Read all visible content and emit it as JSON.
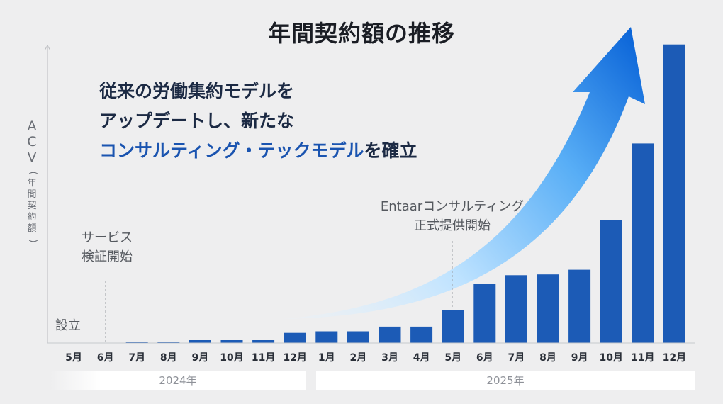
{
  "title": "年間契約額の推移",
  "headline": {
    "line1": "従来の労働集約モデルを",
    "line2": "アップデートし、新たな",
    "line3_highlight": "コンサルティング・テックモデル",
    "line3_rest": "を確立"
  },
  "y_axis_label": {
    "abbr": [
      "A",
      "C",
      "V"
    ],
    "paren_open": "(",
    "paren_chars": [
      "年",
      "間",
      "契",
      "約",
      "額"
    ],
    "paren_close": ")"
  },
  "annotations": {
    "founding": "設立",
    "service_line1": "サービス",
    "service_line2": "検証開始",
    "entaar_line1": "Entaarコンサルティング",
    "entaar_line2": "正式提供開始"
  },
  "years": [
    "2024年",
    "2025年"
  ],
  "colors": {
    "bar": "#1c5bb6",
    "arrow_dark": "#0a64d8",
    "arrow_light": "#bfe3ff",
    "band": "#ffffff"
  },
  "chart_data": {
    "type": "bar",
    "title": "年間契約額の推移",
    "ylabel": "ACV(年間契約額)",
    "categories": [
      "5月",
      "6月",
      "7月",
      "8月",
      "9月",
      "10月",
      "11月",
      "12月",
      "1月",
      "2月",
      "3月",
      "4月",
      "5月",
      "6月",
      "7月",
      "8月",
      "9月",
      "10月",
      "11月",
      "12月"
    ],
    "values": [
      0,
      0,
      0.1,
      0.1,
      0.4,
      0.4,
      0.4,
      1.3,
      1.5,
      1.5,
      2.1,
      2.1,
      4.2,
      7.6,
      8.7,
      8.8,
      9.4,
      15.8,
      25.6,
      38.3
    ],
    "ylim": [
      0,
      40
    ],
    "year_groups": [
      {
        "label": "2024年",
        "months": [
          "5月",
          "6月",
          "7月",
          "8月",
          "9月",
          "10月",
          "11月",
          "12月"
        ]
      },
      {
        "label": "2025年",
        "months": [
          "1月",
          "2月",
          "3月",
          "4月",
          "5月",
          "6月",
          "7月",
          "8月",
          "9月",
          "10月",
          "11月",
          "12月"
        ]
      }
    ],
    "grid": false,
    "legend": "none"
  }
}
